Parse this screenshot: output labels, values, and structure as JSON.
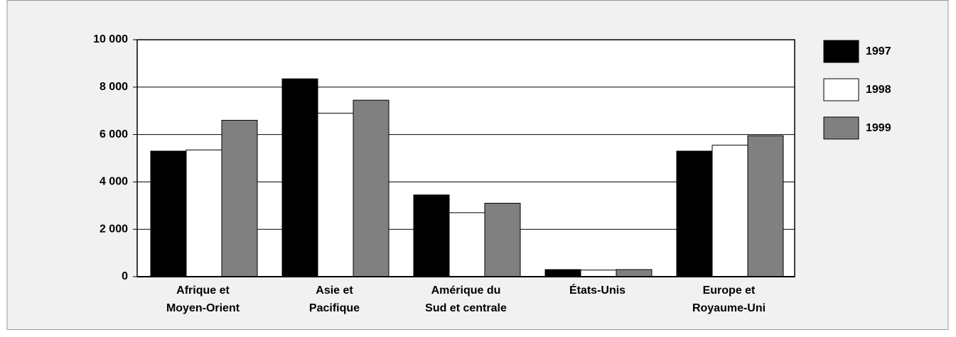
{
  "chart_data": {
    "type": "bar",
    "categories": [
      "Afrique et\nMoyen-Orient",
      "Asie et\nPacifique",
      "Amérique du\nSud et centrale",
      "États-Unis",
      "Europe et\nRoyaume-Uni"
    ],
    "series": [
      {
        "name": "1997",
        "color": "#000000",
        "values": [
          5300,
          8350,
          3450,
          300,
          5300
        ]
      },
      {
        "name": "1998",
        "color": "#ffffff",
        "values": [
          5350,
          6900,
          2700,
          280,
          5550
        ]
      },
      {
        "name": "1999",
        "color": "#808080",
        "values": [
          6600,
          7450,
          3100,
          300,
          5950
        ]
      }
    ],
    "ylim": [
      0,
      10000
    ],
    "yticks": [
      0,
      {
        "value": 2000,
        "label": "2 000"
      },
      {
        "value": 4000,
        "label": "4 000"
      },
      {
        "value": 6000,
        "label": "6 000"
      },
      {
        "value": 8000,
        "label": "8 000"
      },
      {
        "value": 10000,
        "label": "10 000"
      }
    ],
    "grid": true,
    "legend": "right"
  }
}
